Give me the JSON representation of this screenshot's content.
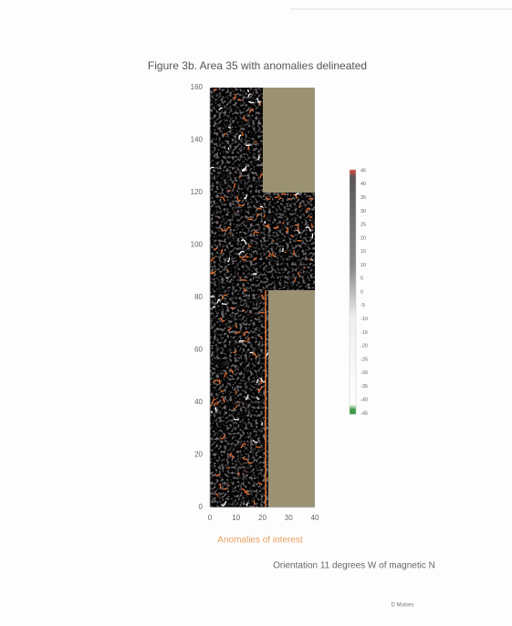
{
  "figure": {
    "title": "Figure 3b.  Area 35 with anomalies delineated",
    "y_ticks": [
      0,
      20,
      40,
      60,
      80,
      100,
      120,
      140,
      160
    ],
    "x_ticks": [
      0,
      10,
      20,
      30,
      40
    ],
    "colorbar_ticks": [
      45,
      40,
      35,
      30,
      25,
      20,
      15,
      10,
      5,
      0,
      -5,
      -10,
      -15,
      -20,
      -25,
      -30,
      -35,
      -40,
      -45
    ],
    "legend_label": "Anomalies of interest"
  },
  "caption": "Orientation 11 degrees W of magnetic N",
  "author": "D Moises"
}
